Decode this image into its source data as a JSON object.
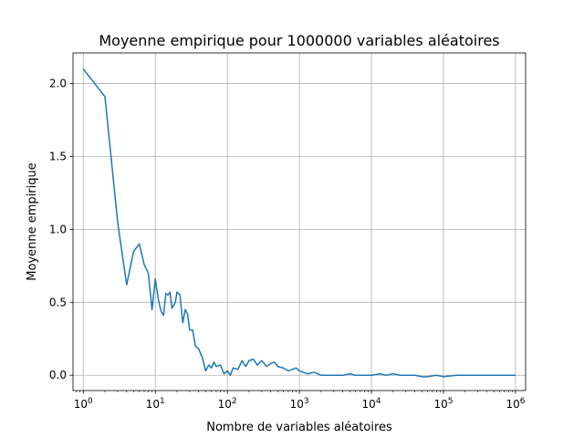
{
  "chart_data": {
    "type": "line",
    "title": "Moyenne empirique pour 1000000 variables aléatoires",
    "xlabel": "Nombre de variables aléatoires",
    "ylabel": "Moyenne empirique",
    "xscale": "log",
    "xlim": [
      0.72,
      1380000
    ],
    "ylim": [
      -0.105,
      2.21
    ],
    "grid": true,
    "line_color": "#1f77b4",
    "x_ticks": [
      {
        "value": 1,
        "base": "10",
        "exp": "0"
      },
      {
        "value": 10,
        "base": "10",
        "exp": "1"
      },
      {
        "value": 100,
        "base": "10",
        "exp": "2"
      },
      {
        "value": 1000,
        "base": "10",
        "exp": "3"
      },
      {
        "value": 10000,
        "base": "10",
        "exp": "4"
      },
      {
        "value": 100000,
        "base": "10",
        "exp": "5"
      },
      {
        "value": 1000000,
        "base": "10",
        "exp": "6"
      }
    ],
    "y_ticks": [
      {
        "value": 0.0,
        "label": "0.0"
      },
      {
        "value": 0.5,
        "label": "0.5"
      },
      {
        "value": 1.0,
        "label": "1.0"
      },
      {
        "value": 1.5,
        "label": "1.5"
      },
      {
        "value": 2.0,
        "label": "2.0"
      }
    ],
    "series": [
      {
        "x": [
          1,
          2,
          3,
          4,
          5,
          6,
          7,
          8,
          9,
          10,
          11,
          12,
          13,
          14,
          15,
          16,
          17,
          18,
          19,
          20,
          22,
          24,
          26,
          28,
          30,
          33,
          36,
          40,
          45,
          50,
          55,
          60,
          65,
          70,
          80,
          90,
          100,
          110,
          120,
          140,
          160,
          180,
          200,
          230,
          260,
          300,
          350,
          400,
          450,
          500,
          600,
          700,
          800,
          900,
          1000,
          1300,
          1600,
          2000,
          2500,
          3000,
          4000,
          5000,
          6000,
          8000,
          10000,
          13000,
          16000,
          20000,
          25000,
          30000,
          40000,
          50000,
          60000,
          80000,
          100000,
          150000,
          200000,
          300000,
          500000,
          700000,
          1000000
        ],
        "y": [
          2.1,
          1.91,
          1.05,
          0.62,
          0.85,
          0.9,
          0.76,
          0.7,
          0.45,
          0.66,
          0.52,
          0.44,
          0.41,
          0.56,
          0.55,
          0.57,
          0.46,
          0.48,
          0.5,
          0.57,
          0.55,
          0.36,
          0.45,
          0.42,
          0.31,
          0.31,
          0.2,
          0.18,
          0.12,
          0.03,
          0.07,
          0.05,
          0.09,
          0.06,
          0.07,
          0.01,
          0.03,
          0.0,
          0.05,
          0.04,
          0.1,
          0.06,
          0.1,
          0.11,
          0.07,
          0.1,
          0.06,
          0.08,
          0.09,
          0.06,
          0.05,
          0.03,
          0.04,
          0.05,
          0.03,
          0.01,
          0.02,
          0.0,
          0.0,
          0.0,
          0.0,
          0.01,
          0.0,
          0.0,
          0.0,
          0.01,
          0.0,
          0.01,
          0.0,
          0.0,
          0.0,
          -0.01,
          -0.01,
          0.0,
          -0.01,
          0.0,
          0.0,
          0.0,
          0.0,
          0.0,
          0.0
        ]
      }
    ]
  }
}
